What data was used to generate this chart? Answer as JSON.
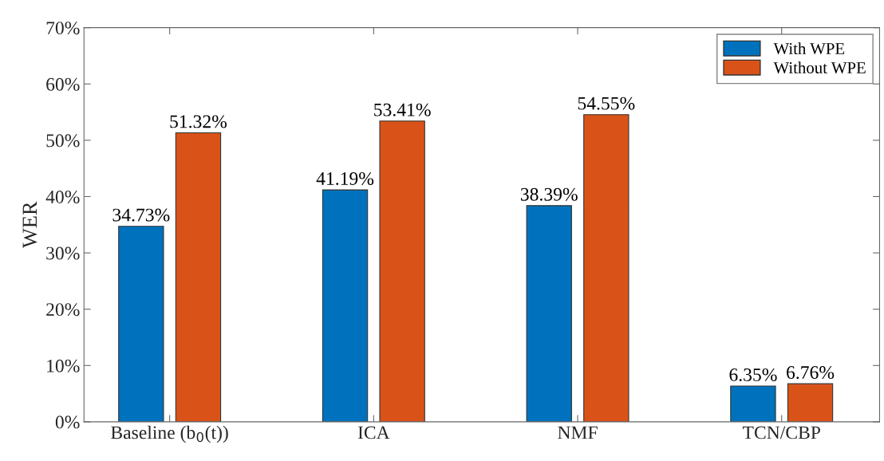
{
  "chart_data": {
    "type": "bar",
    "ylabel": "WER",
    "categories": [
      "Baseline (b$_{0}$(t))",
      "ICA",
      "NMF",
      "TCN/CBP"
    ],
    "series": [
      {
        "name": "With WPE",
        "color": "#0072bd",
        "values": [
          34.73,
          41.19,
          38.39,
          6.35
        ],
        "value_labels": [
          "34.73%",
          "41.19%",
          "38.39%",
          "6.35%"
        ]
      },
      {
        "name": "Without WPE",
        "color": "#d95319",
        "values": [
          51.32,
          53.41,
          54.55,
          6.76
        ],
        "value_labels": [
          "51.32%",
          "53.41%",
          "54.55%",
          "6.76%"
        ]
      }
    ],
    "ylim": [
      0,
      70
    ],
    "yticks": [
      {
        "value": 0,
        "label": "0%"
      },
      {
        "value": 10,
        "label": "10%"
      },
      {
        "value": 20,
        "label": "20%"
      },
      {
        "value": 30,
        "label": "30%"
      },
      {
        "value": 40,
        "label": "40%"
      },
      {
        "value": 50,
        "label": "50%"
      },
      {
        "value": 60,
        "label": "60%"
      },
      {
        "value": 70,
        "label": "70%"
      }
    ],
    "grid": false,
    "legend": "top right"
  }
}
